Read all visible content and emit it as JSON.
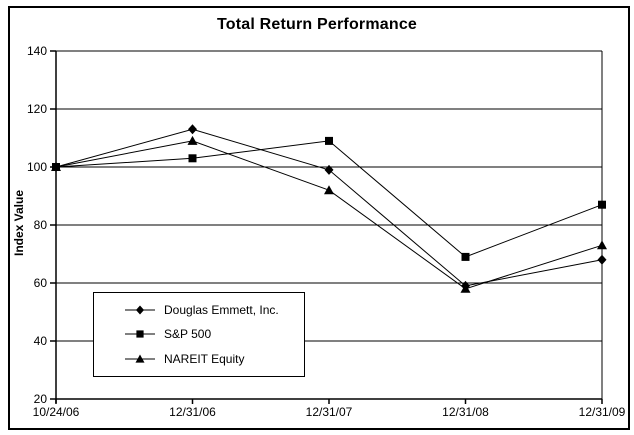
{
  "chart_data": {
    "type": "line",
    "title": "Total Return Performance",
    "xlabel": "",
    "ylabel": "Index Value",
    "categories": [
      "10/24/06",
      "12/31/06",
      "12/31/07",
      "12/31/08",
      "12/31/09"
    ],
    "series": [
      {
        "name": "Douglas Emmett, Inc.",
        "marker": "diamond",
        "values": [
          100,
          113,
          99,
          59,
          68
        ]
      },
      {
        "name": "S&P 500",
        "marker": "square",
        "values": [
          100,
          103,
          109,
          69,
          87
        ]
      },
      {
        "name": "NAREIT Equity",
        "marker": "triangle",
        "values": [
          100,
          109,
          92,
          58,
          73
        ]
      }
    ],
    "ylim": [
      20,
      140
    ],
    "ytick_step": 20,
    "grid": true,
    "line_color": "#000000",
    "legend_position": "inside-lower-left"
  }
}
